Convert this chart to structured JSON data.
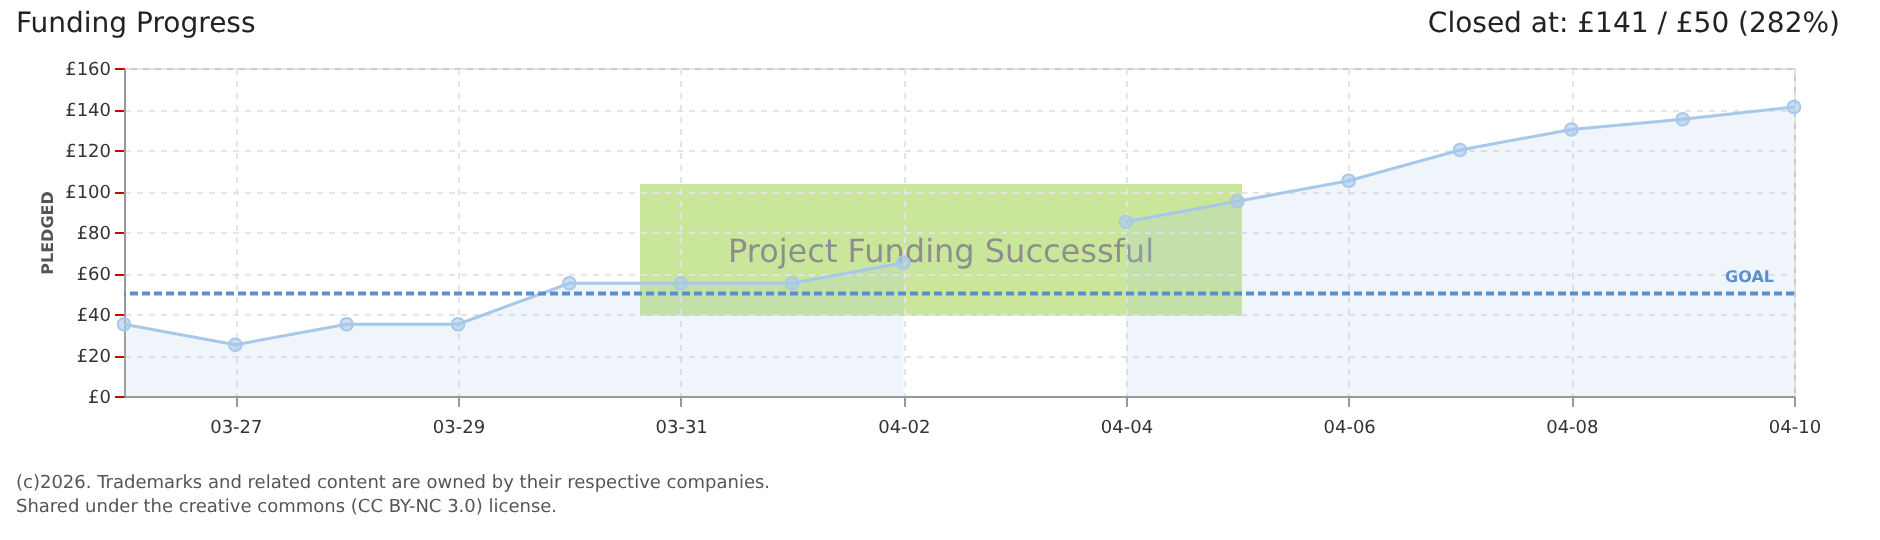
{
  "chart_data": {
    "type": "area",
    "title": "Funding Progress",
    "subtitle": "Closed at: £141 / £50 (282%)",
    "ylabel": "PLEDGED",
    "x": [
      "--03-26",
      "--03-27",
      "--03-28",
      "--03-29",
      "--03-30",
      "--03-31",
      "--04-01",
      "--04-02",
      "--04-03",
      "--04-04",
      "--04-05",
      "--04-06",
      "--04-07",
      "--04-08",
      "--04-09",
      "--04-10"
    ],
    "series": [
      {
        "color": "#a8c8ea",
        "values": [
          35,
          25,
          35,
          35,
          55,
          55,
          55,
          65,
          null,
          85,
          95,
          105,
          120,
          130,
          135,
          141
        ]
      }
    ],
    "xlim": [
      "--03-26",
      "--04-10"
    ],
    "xticks": [
      {
        "value": "--03-27",
        "label": "03-27"
      },
      {
        "value": "--03-29",
        "label": "03-29"
      },
      {
        "value": "--03-31",
        "label": "03-31"
      },
      {
        "value": "--04-02",
        "label": "04-02"
      },
      {
        "value": "--04-04",
        "label": "04-04"
      },
      {
        "value": "--04-06",
        "label": "04-06"
      },
      {
        "value": "--04-08",
        "label": "04-08"
      },
      {
        "value": "--04-10",
        "label": "04-10"
      }
    ],
    "ylim": [
      0,
      160
    ],
    "yticks": [
      {
        "value": 0,
        "label": "£0"
      },
      {
        "value": 20,
        "label": "£20"
      },
      {
        "value": 40,
        "label": "£40"
      },
      {
        "value": 60,
        "label": "£60"
      },
      {
        "value": 80,
        "label": "£80"
      },
      {
        "value": 100,
        "label": "£100"
      },
      {
        "value": 120,
        "label": "£120"
      },
      {
        "value": 140,
        "label": "£140"
      },
      {
        "value": 160,
        "label": "£160"
      }
    ],
    "ref_lines": [
      {
        "axis": "y",
        "value": 50,
        "label": "GOAL",
        "color": "#5b8fd0",
        "line_style": "dashed"
      }
    ],
    "annotations": [
      "Project Funding Successful",
      "(c)2026. Trademarks and related content are owned by their respective companies.",
      "Shared under the creative commons (CC BY-NC 3.0) license."
    ],
    "grid": true,
    "marker": "circle"
  }
}
